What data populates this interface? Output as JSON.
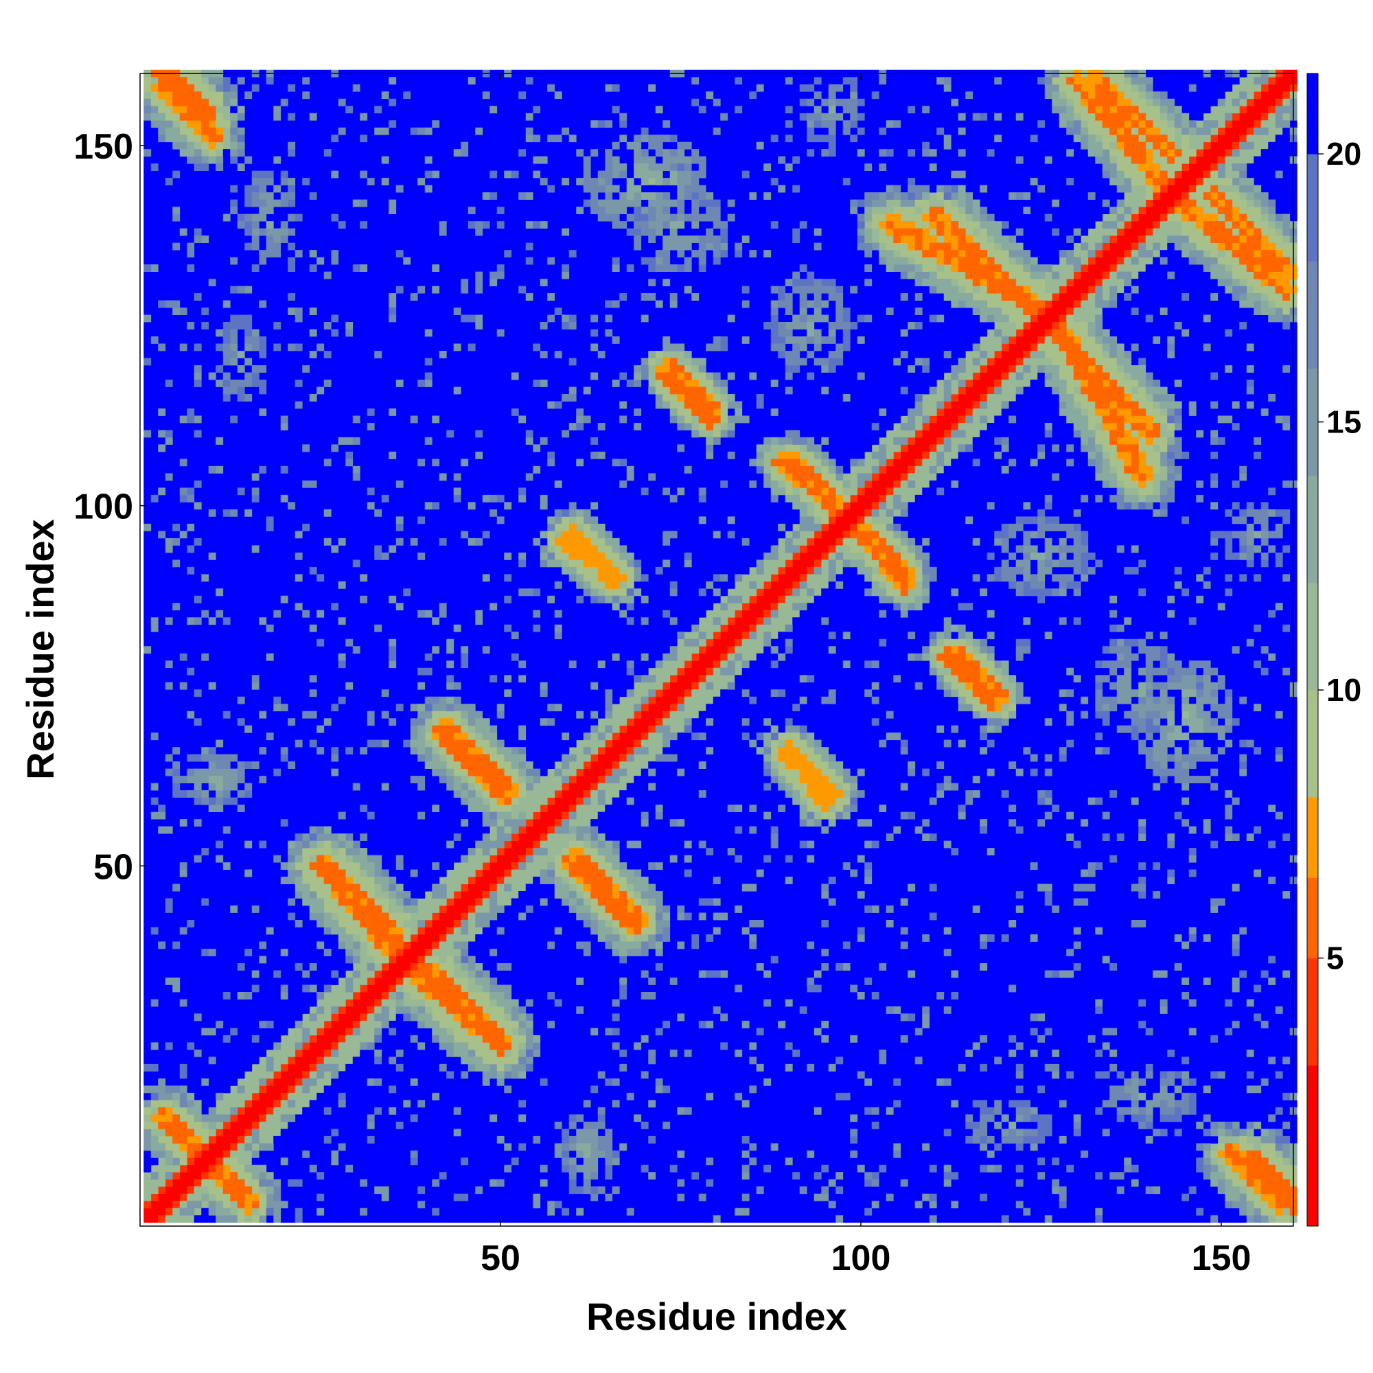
{
  "chart_data": {
    "type": "heatmap",
    "title": "",
    "xlabel": "Residue index",
    "ylabel": "Residue index",
    "n_residues": 160,
    "xlim": [
      1,
      160
    ],
    "ylim": [
      1,
      160
    ],
    "x_ticks": [
      50,
      100,
      150
    ],
    "y_ticks": [
      50,
      100,
      150
    ],
    "colorbar": {
      "ticks": [
        5,
        10,
        15,
        20
      ],
      "range": [
        0,
        21.5
      ],
      "colors": [
        {
          "upto": 3,
          "color": "#ff0000"
        },
        {
          "upto": 5,
          "color": "#ff3300"
        },
        {
          "upto": 6.5,
          "color": "#ff6600"
        },
        {
          "upto": 8,
          "color": "#ff9900"
        },
        {
          "upto": 10,
          "color": "#a8c08a"
        },
        {
          "upto": 12,
          "color": "#98b896"
        },
        {
          "upto": 14,
          "color": "#88aa9f"
        },
        {
          "upto": 16,
          "color": "#7b98a8"
        },
        {
          "upto": 18,
          "color": "#6f88b3"
        },
        {
          "upto": 20,
          "color": "#5d73c4"
        },
        {
          "upto": 21.5,
          "color": "#0000ff"
        }
      ]
    },
    "background_value": 21.5,
    "diagonal_band": {
      "core_value": 2,
      "halo_value": 12,
      "core_width": 2.5,
      "halo_width": 6
    },
    "features": [
      {
        "kind": "anti",
        "a1": 3,
        "a2": 9,
        "b1": 160,
        "b2": 154,
        "value": 5,
        "width": 5
      },
      {
        "kind": "anti",
        "a1": 3,
        "a2": 10,
        "b1": 15,
        "b2": 8,
        "value": 6,
        "width": 4.5
      },
      {
        "kind": "anti",
        "a1": 25,
        "a2": 35,
        "b1": 50,
        "b2": 40,
        "value": 6,
        "width": 5
      },
      {
        "kind": "anti",
        "a1": 37,
        "a2": 50,
        "b1": 36,
        "b2": 25,
        "value": 6,
        "width": 5
      },
      {
        "kind": "anti",
        "a1": 42,
        "a2": 50,
        "b1": 68,
        "b2": 60,
        "value": 6,
        "width": 4.5
      },
      {
        "kind": "anti",
        "a1": 60,
        "a2": 69,
        "b1": 51,
        "b2": 42,
        "value": 6,
        "width": 4.5
      },
      {
        "kind": "anti",
        "a1": 59,
        "a2": 66,
        "b1": 95,
        "b2": 90,
        "value": 7,
        "width": 4
      },
      {
        "kind": "anti",
        "a1": 73,
        "a2": 79,
        "b1": 118,
        "b2": 112,
        "value": 6,
        "width": 4
      },
      {
        "kind": "anti",
        "a1": 90,
        "a2": 96,
        "b1": 106,
        "b2": 100,
        "value": 6,
        "width": 4
      },
      {
        "kind": "anti",
        "a1": 90,
        "a2": 96,
        "b1": 65,
        "b2": 60,
        "value": 7,
        "width": 4
      },
      {
        "kind": "anti",
        "a1": 101,
        "a2": 106,
        "b1": 95,
        "b2": 89,
        "value": 6,
        "width": 4
      },
      {
        "kind": "anti",
        "a1": 113,
        "a2": 119,
        "b1": 79,
        "b2": 73,
        "value": 6,
        "width": 4
      },
      {
        "kind": "anti",
        "a1": 104,
        "a2": 124,
        "b1": 139,
        "b2": 128,
        "value": 6,
        "width": 5
      },
      {
        "kind": "anti",
        "a1": 127,
        "a2": 140,
        "b1": 124,
        "b2": 110,
        "value": 6,
        "width": 5
      },
      {
        "kind": "anti",
        "a1": 132,
        "a2": 143,
        "b1": 159,
        "b2": 149,
        "value": 6,
        "width": 5
      },
      {
        "kind": "anti",
        "a1": 143,
        "a2": 159,
        "b1": 143,
        "b2": 130,
        "value": 6,
        "width": 5
      },
      {
        "kind": "anti",
        "a1": 151,
        "a2": 158,
        "b1": 10,
        "b2": 3,
        "value": 6,
        "width": 4.5
      },
      {
        "kind": "blob",
        "cx": 70,
        "cy": 145,
        "rx": 9,
        "ry": 7,
        "value": 11
      },
      {
        "kind": "blob",
        "cx": 125,
        "cy": 93,
        "rx": 7,
        "ry": 6,
        "value": 12
      },
      {
        "kind": "blob",
        "cx": 138,
        "cy": 75,
        "rx": 6,
        "ry": 7,
        "value": 12
      },
      {
        "kind": "blob",
        "cx": 10,
        "cy": 62,
        "rx": 6,
        "ry": 4,
        "value": 12
      },
      {
        "kind": "blob",
        "cx": 140,
        "cy": 18,
        "rx": 7,
        "ry": 4,
        "value": 12
      },
      {
        "kind": "blob",
        "cx": 120,
        "cy": 14,
        "rx": 7,
        "ry": 4,
        "value": 13
      },
      {
        "kind": "blob",
        "cx": 155,
        "cy": 96,
        "rx": 5,
        "ry": 5,
        "value": 13
      }
    ]
  }
}
